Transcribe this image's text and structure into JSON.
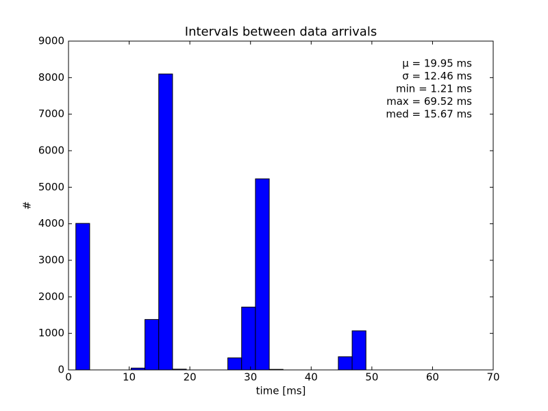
{
  "chart_data": {
    "type": "histogram",
    "title": "Intervals between data arrivals",
    "xlabel": "time [ms]",
    "ylabel": "#",
    "bins": [
      1.21,
      3.487,
      5.764,
      8.041,
      10.318,
      12.595,
      14.872,
      17.149,
      19.426,
      21.703,
      23.98,
      26.257,
      28.534,
      30.811,
      33.088,
      35.365,
      37.642,
      39.919,
      42.196,
      44.473,
      46.75,
      49.027,
      51.304,
      53.581,
      55.858,
      58.135,
      60.412,
      62.689,
      64.966,
      67.243,
      69.52
    ],
    "values": [
      4010,
      0,
      0,
      0,
      50,
      1380,
      8100,
      20,
      0,
      0,
      0,
      330,
      1720,
      5230,
      15,
      0,
      0,
      0,
      0,
      360,
      1070,
      0,
      0,
      0,
      0,
      0,
      0,
      0,
      0,
      0
    ],
    "color": "#0000ff",
    "xlim": [
      0,
      70
    ],
    "xticks": [
      0,
      10,
      20,
      30,
      40,
      50,
      60,
      70
    ],
    "ylim": [
      0,
      9000
    ],
    "yticks": [
      0,
      1000,
      2000,
      3000,
      4000,
      5000,
      6000,
      7000,
      8000,
      9000
    ],
    "annotations": [
      "μ = 19.95 ms",
      "σ = 12.46 ms",
      "min = 1.21 ms",
      "max = 69.52 ms",
      "med = 15.67 ms"
    ]
  }
}
